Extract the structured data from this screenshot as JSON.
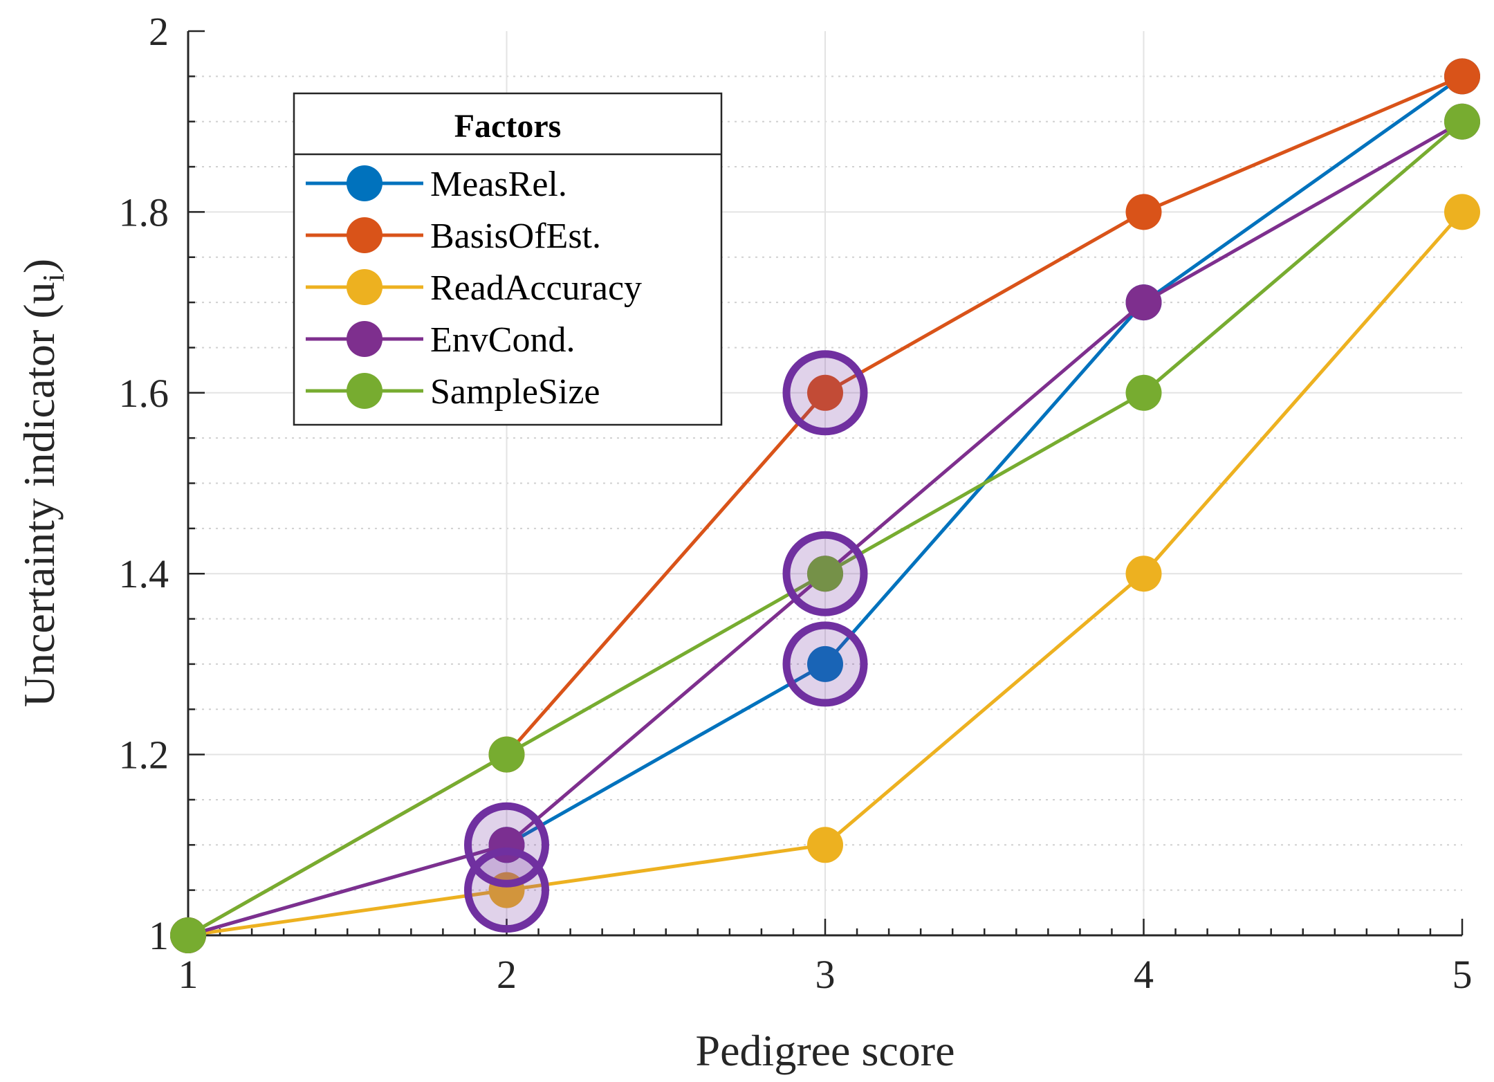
{
  "chart_data": {
    "type": "line",
    "xlabel": "Pedigree score",
    "ylabel": "Uncertainty indicator (u",
    "ylabel_subscript": "i",
    "ylabel_close": ")",
    "x": [
      1,
      2,
      3,
      4,
      5
    ],
    "xlim": [
      1,
      5
    ],
    "ylim": [
      1,
      2
    ],
    "xticks": [
      "1",
      "2",
      "3",
      "4",
      "5"
    ],
    "yticks": [
      "1",
      "1.2",
      "1.4",
      "1.6",
      "1.8",
      "2"
    ],
    "grid": true,
    "minor_grid": true,
    "legend": {
      "title": "Factors",
      "placement": "top-left"
    },
    "series": [
      {
        "name": "MeasRel.",
        "color": "#0072BD",
        "values": [
          1,
          1.1,
          1.3,
          1.7,
          1.95
        ]
      },
      {
        "name": "BasisOfEst.",
        "color": "#D95319",
        "values": [
          1,
          1.2,
          1.6,
          1.8,
          1.95
        ]
      },
      {
        "name": "ReadAccuracy",
        "color": "#EDB120",
        "values": [
          1,
          1.05,
          1.1,
          1.4,
          1.8
        ]
      },
      {
        "name": "EnvCond.",
        "color": "#7E2F8E",
        "values": [
          1,
          1.1,
          1.4,
          1.7,
          1.9
        ]
      },
      {
        "name": "SampleSize",
        "color": "#77AC30",
        "values": [
          1,
          1.2,
          1.4,
          1.6,
          1.9
        ]
      }
    ],
    "highlights": {
      "color": "#7030A0",
      "points": [
        {
          "x": 2,
          "y": 1.1
        },
        {
          "x": 2,
          "y": 1.05
        },
        {
          "x": 3,
          "y": 1.6
        },
        {
          "x": 3,
          "y": 1.4
        },
        {
          "x": 3,
          "y": 1.3
        }
      ]
    }
  }
}
